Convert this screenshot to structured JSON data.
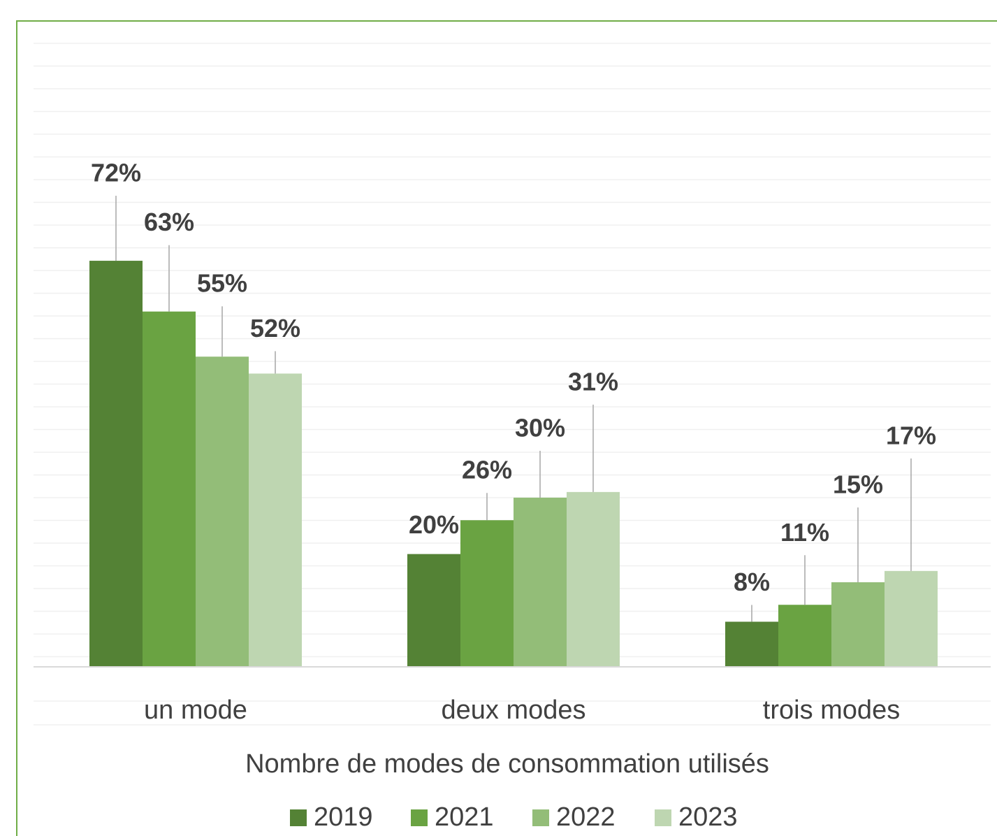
{
  "chart_data": {
    "type": "bar",
    "x_label": "Nombre de modes de consommation utilisés",
    "categories": [
      "un mode",
      "deux modes",
      "trois modes"
    ],
    "series": [
      {
        "name": "2019",
        "color": "#548235",
        "values": [
          72,
          20,
          8
        ],
        "value_labels": [
          "72%",
          "20%",
          "8%"
        ]
      },
      {
        "name": "2021",
        "color": "#6aa342",
        "values": [
          63,
          26,
          11
        ],
        "value_labels": [
          "63%",
          "26%",
          "11%"
        ]
      },
      {
        "name": "2022",
        "color": "#93bd78",
        "values": [
          55,
          30,
          15
        ],
        "value_labels": [
          "55%",
          "30%",
          "15%"
        ]
      },
      {
        "name": "2023",
        "color": "#bed6b1",
        "values": [
          52,
          31,
          17
        ],
        "value_labels": [
          "52%",
          "31%",
          "17%"
        ]
      }
    ],
    "ylim": [
      0,
      110.8
    ]
  }
}
